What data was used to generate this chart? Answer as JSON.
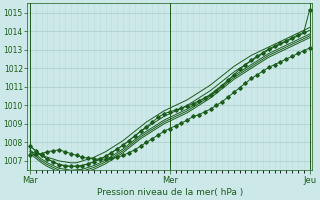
{
  "bg_color": "#cce8e8",
  "grid_color_major": "#aacccc",
  "grid_color_minor": "#bbdddd",
  "line_color": "#1a5c1a",
  "title": "Pression niveau de la mer( hPa )",
  "ylim": [
    1006.5,
    1015.5
  ],
  "yticks": [
    1007,
    1008,
    1009,
    1010,
    1011,
    1012,
    1013,
    1014,
    1015
  ],
  "xtick_labels": [
    "Mar",
    "Mer",
    "Jeu"
  ],
  "xtick_pos": [
    0,
    24,
    48
  ],
  "n_points": 49,
  "series": [
    [
      1007.5,
      1007.4,
      1007.3,
      1007.2,
      1007.1,
      1007.0,
      1006.95,
      1006.9,
      1006.9,
      1007.0,
      1007.1,
      1007.2,
      1007.35,
      1007.5,
      1007.7,
      1007.9,
      1008.1,
      1008.35,
      1008.6,
      1008.85,
      1009.1,
      1009.3,
      1009.5,
      1009.7,
      1009.85,
      1010.0,
      1010.15,
      1010.3,
      1010.5,
      1010.7,
      1010.9,
      1011.1,
      1011.35,
      1011.6,
      1011.85,
      1012.1,
      1012.3,
      1012.5,
      1012.7,
      1012.85,
      1013.0,
      1013.15,
      1013.3,
      1013.45,
      1013.6,
      1013.75,
      1013.9,
      1014.05,
      1014.2
    ],
    [
      1007.8,
      1007.55,
      1007.3,
      1007.1,
      1006.95,
      1006.8,
      1006.75,
      1006.7,
      1006.72,
      1006.75,
      1006.85,
      1006.95,
      1007.1,
      1007.25,
      1007.45,
      1007.65,
      1007.85,
      1008.1,
      1008.35,
      1008.6,
      1008.8,
      1009.0,
      1009.2,
      1009.4,
      1009.55,
      1009.7,
      1009.85,
      1010.0,
      1010.2,
      1010.4,
      1010.6,
      1010.8,
      1011.05,
      1011.3,
      1011.55,
      1011.8,
      1012.0,
      1012.2,
      1012.4,
      1012.6,
      1012.8,
      1013.0,
      1013.15,
      1013.3,
      1013.45,
      1013.6,
      1013.75,
      1013.9,
      1014.05
    ],
    [
      1007.6,
      1007.35,
      1007.1,
      1006.9,
      1006.75,
      1006.6,
      1006.55,
      1006.5,
      1006.52,
      1006.55,
      1006.65,
      1006.75,
      1006.9,
      1007.05,
      1007.25,
      1007.45,
      1007.65,
      1007.9,
      1008.15,
      1008.4,
      1008.6,
      1008.8,
      1009.0,
      1009.2,
      1009.35,
      1009.5,
      1009.65,
      1009.8,
      1010.0,
      1010.2,
      1010.4,
      1010.6,
      1010.85,
      1011.1,
      1011.35,
      1011.6,
      1011.8,
      1012.0,
      1012.2,
      1012.4,
      1012.6,
      1012.8,
      1012.95,
      1013.1,
      1013.25,
      1013.4,
      1013.55,
      1013.7,
      1013.85
    ],
    [
      1007.4,
      1007.15,
      1006.9,
      1006.7,
      1006.55,
      1006.4,
      1006.35,
      1006.3,
      1006.32,
      1006.35,
      1006.45,
      1006.55,
      1006.7,
      1006.85,
      1007.05,
      1007.25,
      1007.45,
      1007.7,
      1007.95,
      1008.2,
      1008.4,
      1008.6,
      1008.8,
      1009.0,
      1009.15,
      1009.3,
      1009.45,
      1009.6,
      1009.8,
      1010.0,
      1010.2,
      1010.4,
      1010.65,
      1010.9,
      1011.15,
      1011.4,
      1011.6,
      1011.8,
      1012.0,
      1012.2,
      1012.4,
      1012.6,
      1012.75,
      1012.9,
      1013.05,
      1013.2,
      1013.35,
      1013.5,
      1013.65
    ],
    [
      1007.5,
      1007.25,
      1007.0,
      1006.8,
      1006.65,
      1006.5,
      1006.45,
      1006.4,
      1006.42,
      1006.45,
      1006.55,
      1006.65,
      1006.8,
      1006.95,
      1007.15,
      1007.35,
      1007.55,
      1007.8,
      1008.05,
      1008.3,
      1008.5,
      1008.7,
      1008.9,
      1009.1,
      1009.25,
      1009.4,
      1009.55,
      1009.7,
      1009.9,
      1010.1,
      1010.3,
      1010.5,
      1010.75,
      1011.0,
      1011.25,
      1011.5,
      1011.7,
      1011.9,
      1012.1,
      1012.3,
      1012.5,
      1012.7,
      1012.85,
      1013.0,
      1013.15,
      1013.3,
      1013.45,
      1013.6,
      1013.75
    ],
    [
      1007.3,
      1007.35,
      1007.4,
      1007.5,
      1007.55,
      1007.6,
      1007.5,
      1007.4,
      1007.3,
      1007.2,
      1007.15,
      1007.1,
      1007.1,
      1007.1,
      1007.15,
      1007.2,
      1007.3,
      1007.45,
      1007.6,
      1007.8,
      1008.0,
      1008.2,
      1008.4,
      1008.6,
      1008.75,
      1008.9,
      1009.05,
      1009.2,
      1009.4,
      1009.5,
      1009.65,
      1009.8,
      1010.0,
      1010.2,
      1010.45,
      1010.7,
      1010.95,
      1011.2,
      1011.45,
      1011.65,
      1011.85,
      1012.05,
      1012.2,
      1012.35,
      1012.5,
      1012.65,
      1012.8,
      1012.95,
      1013.1
    ],
    [
      1007.8,
      1007.55,
      1007.3,
      1007.1,
      1006.95,
      1006.8,
      1006.75,
      1006.7,
      1006.72,
      1006.75,
      1006.85,
      1006.95,
      1007.1,
      1007.25,
      1007.45,
      1007.65,
      1007.85,
      1008.1,
      1008.35,
      1008.6,
      1008.85,
      1009.1,
      1009.35,
      1009.55,
      1009.65,
      1009.75,
      1009.85,
      1009.95,
      1010.1,
      1010.25,
      1010.4,
      1010.55,
      1010.8,
      1011.05,
      1011.35,
      1011.65,
      1011.95,
      1012.2,
      1012.45,
      1012.65,
      1012.85,
      1013.05,
      1013.2,
      1013.35,
      1013.5,
      1013.65,
      1013.8,
      1013.95,
      1015.15
    ]
  ],
  "smooth_series_idx": [
    0,
    1,
    2,
    3,
    4
  ],
  "marker_series_idx": [
    5,
    6
  ]
}
